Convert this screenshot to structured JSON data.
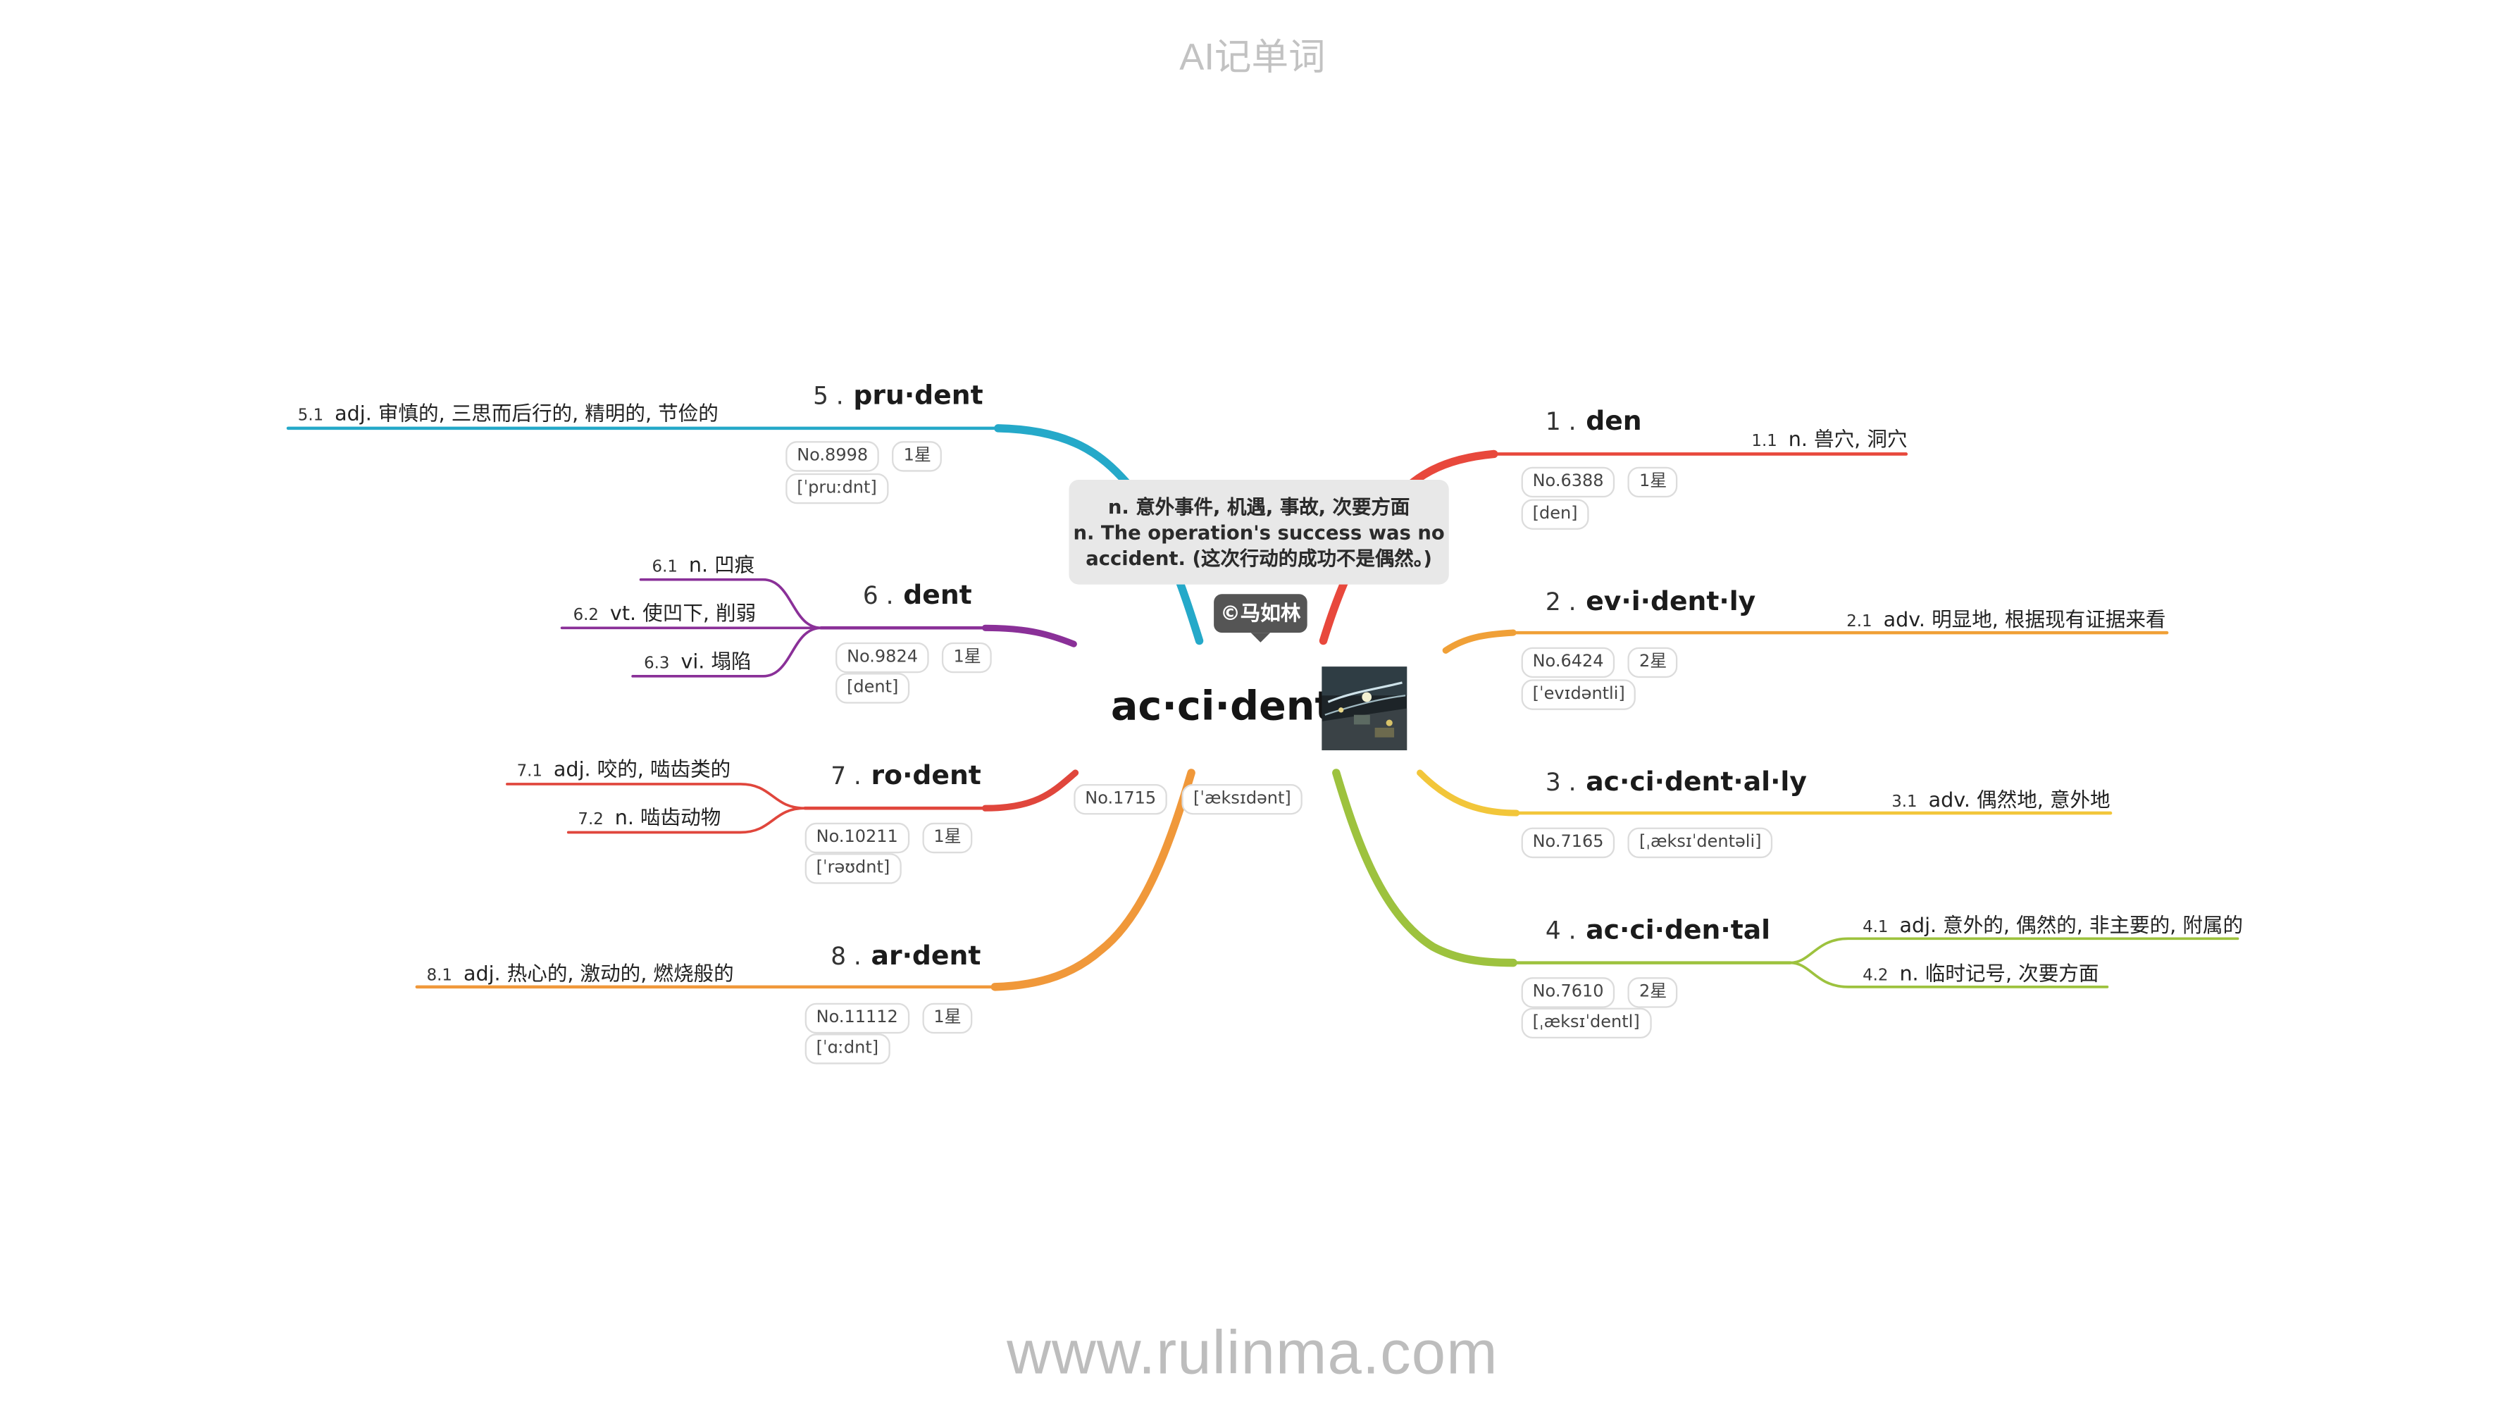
{
  "app_title": "AI记单词",
  "footer": "www.rulinma.com",
  "center": {
    "word": "ac·ci·dent",
    "no": "No.1715",
    "phonetic": "[ˈæksɪdənt]",
    "tooltip_lines": [
      "n. 意外事件, 机遇, 事故, 次要方面",
      "n. The operation's success was no",
      "accident. (这次行动的成功不是偶然。)"
    ],
    "author": "©马如林",
    "image_icon": "night-street-photo-icon"
  },
  "branches": [
    {
      "num": "1 .",
      "word": "den",
      "no": "No.6388",
      "star": "1星",
      "phonetic": "[den]",
      "color": "#e8483c",
      "defs": [
        {
          "num": "1.1",
          "text": "n. 兽穴, 洞穴"
        }
      ]
    },
    {
      "num": "2 .",
      "word": "ev·i·dent·ly",
      "no": "No.6424",
      "star": "2星",
      "phonetic": "[ˈevɪdəntli]",
      "color": "#f0a037",
      "defs": [
        {
          "num": "2.1",
          "text": "adv. 明显地, 根据现有证据来看"
        }
      ]
    },
    {
      "num": "3 .",
      "word": "ac·ci·dent·al·ly",
      "no": "No.7165",
      "phonetic": "[ˌæksɪˈdentəli]",
      "color": "#f2c63a",
      "defs": [
        {
          "num": "3.1",
          "text": "adv. 偶然地, 意外地"
        }
      ]
    },
    {
      "num": "4 .",
      "word": "ac·ci·den·tal",
      "no": "No.7610",
      "star": "2星",
      "phonetic": "[ˌæksɪˈdentl]",
      "color": "#9dc23e",
      "defs": [
        {
          "num": "4.1",
          "text": "adj. 意外的, 偶然的, 非主要的, 附属的"
        },
        {
          "num": "4.2",
          "text": "n. 临时记号, 次要方面"
        }
      ]
    },
    {
      "num": "5 .",
      "word": "pru·dent",
      "no": "No.8998",
      "star": "1星",
      "phonetic": "[ˈpruːdnt]",
      "color": "#25a9c9",
      "defs": [
        {
          "num": "5.1",
          "text": "adj. 审慎的, 三思而后行的, 精明的, 节俭的"
        }
      ]
    },
    {
      "num": "6 .",
      "word": "dent",
      "no": "No.9824",
      "star": "1星",
      "phonetic": "[dent]",
      "color": "#8a3098",
      "defs": [
        {
          "num": "6.1",
          "text": "n. 凹痕"
        },
        {
          "num": "6.2",
          "text": "vt. 使凹下, 削弱"
        },
        {
          "num": "6.3",
          "text": "vi. 塌陷"
        }
      ]
    },
    {
      "num": "7 .",
      "word": "ro·dent",
      "no": "No.10211",
      "star": "1星",
      "phonetic": "[ˈrəʊdnt]",
      "color": "#e0463c",
      "defs": [
        {
          "num": "7.1",
          "text": "adj. 咬的, 啮齿类的"
        },
        {
          "num": "7.2",
          "text": "n. 啮齿动物"
        }
      ]
    },
    {
      "num": "8 .",
      "word": "ar·dent",
      "no": "No.11112",
      "star": "1星",
      "phonetic": "[ˈɑːdnt]",
      "color": "#f0983a",
      "defs": [
        {
          "num": "8.1",
          "text": "adj. 热心的, 激动的, 燃烧般的"
        }
      ]
    }
  ]
}
